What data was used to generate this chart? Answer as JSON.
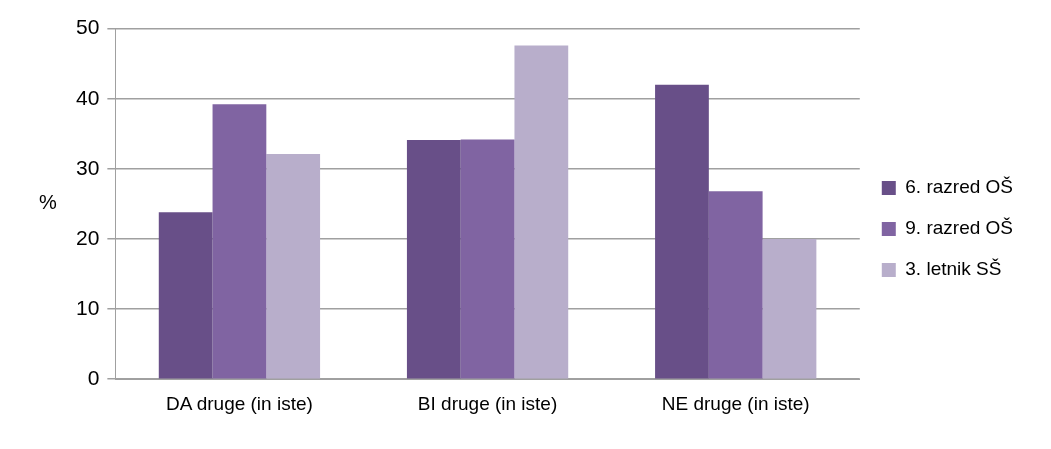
{
  "chart_data": {
    "type": "bar",
    "ylabel": "%",
    "categories": [
      "DA druge (in iste)",
      "BI druge (in iste)",
      "NE druge (in iste)"
    ],
    "series": [
      {
        "name": "6. razred OŠ",
        "color": "#684f88",
        "values": [
          23.8,
          34.1,
          42.0
        ]
      },
      {
        "name": "9. razred OŠ",
        "color": "#8064a2",
        "values": [
          39.2,
          34.2,
          26.8
        ]
      },
      {
        "name": "3. letnik SŠ",
        "color": "#b8aecb",
        "values": [
          32.1,
          47.6,
          20.0
        ]
      }
    ],
    "ylim": [
      0,
      50
    ],
    "yticks": [
      0,
      10,
      20,
      30,
      40,
      50
    ],
    "grid": "y",
    "legend": "right"
  }
}
